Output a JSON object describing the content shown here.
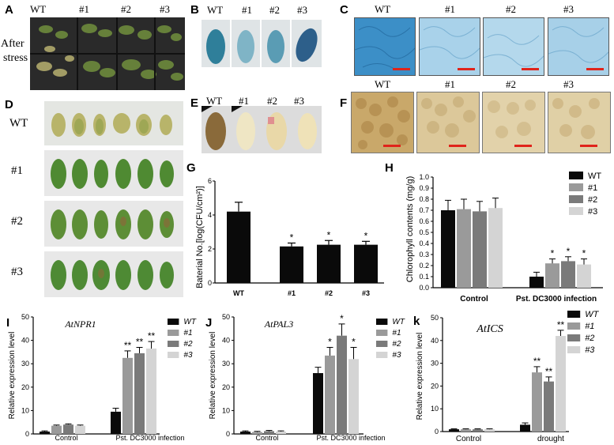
{
  "panels": {
    "A": {
      "letter": "A",
      "side_label_1": "After",
      "side_label_2": "stress",
      "cols": [
        "WT",
        "#1",
        "#2",
        "#3"
      ]
    },
    "B": {
      "letter": "B",
      "cols": [
        "WT",
        "#1",
        "#2",
        "#3"
      ]
    },
    "C": {
      "letter": "C",
      "cols": [
        "WT",
        "#1",
        "#2",
        "#3"
      ]
    },
    "D": {
      "letter": "D",
      "rows": [
        "WT",
        "#1",
        "#2",
        "#3"
      ]
    },
    "E": {
      "letter": "E",
      "cols": [
        "WT",
        "#1",
        "#2",
        "#3"
      ]
    },
    "F": {
      "letter": "F",
      "cols": [
        "WT",
        "#1",
        "#2",
        "#3"
      ]
    },
    "G": {
      "letter": "G"
    },
    "H": {
      "letter": "H"
    },
    "I": {
      "letter": "I"
    },
    "J": {
      "letter": "J"
    },
    "K": {
      "letter": "k"
    }
  },
  "colors": {
    "black": "#0a0a0a",
    "gray1": "#9a9a9a",
    "gray2": "#7a7a7a",
    "gray3": "#d4d4d4",
    "photo_dark": "#2c2c2c",
    "gus_blue": "#2f7f9a",
    "nbt_bg": "#3c8fc7",
    "dab_bg": "#c9a86a",
    "scale_bar": "#e0241b"
  },
  "chart_data": [
    {
      "id": "G",
      "type": "bar",
      "ylabel": "Baterial No.[log(CFU/cm²)]",
      "categories": [
        "WT",
        "#1",
        "#2",
        "#3"
      ],
      "values": [
        4.2,
        2.15,
        2.25,
        2.25
      ],
      "errors": [
        0.55,
        0.2,
        0.25,
        0.2
      ],
      "sig": [
        "",
        "*",
        "*",
        "*"
      ],
      "ylim": [
        0,
        6
      ],
      "yticks": [
        "0",
        "2",
        "4",
        "6"
      ]
    },
    {
      "id": "H",
      "type": "bar",
      "ylabel": "Chlorophyll contents (mg/g)",
      "groups": [
        "Control",
        "Pst. DC3000 infection"
      ],
      "series": [
        {
          "name": "WT",
          "values": [
            0.7,
            0.1
          ],
          "errors": [
            0.09,
            0.04
          ],
          "sig": [
            "",
            ""
          ]
        },
        {
          "name": "#1",
          "values": [
            0.71,
            0.22
          ],
          "errors": [
            0.09,
            0.04
          ],
          "sig": [
            "",
            "*"
          ]
        },
        {
          "name": "#2",
          "values": [
            0.69,
            0.24
          ],
          "errors": [
            0.09,
            0.04
          ],
          "sig": [
            "",
            "*"
          ]
        },
        {
          "name": "#3",
          "values": [
            0.72,
            0.21
          ],
          "errors": [
            0.09,
            0.05
          ],
          "sig": [
            "",
            "*"
          ]
        }
      ],
      "ylim": [
        0,
        1.0
      ],
      "yticks": [
        "0.0",
        "0.1",
        "0.2",
        "0.3",
        "0.4",
        "0.5",
        "0.6",
        "0.7",
        "0.8",
        "0.9",
        "1.0"
      ],
      "legend": "top-right"
    },
    {
      "id": "I",
      "type": "bar",
      "title": "AtNPR1",
      "ylabel": "Relative expression level",
      "groups": [
        "Control",
        "Pst. DC3000 infection"
      ],
      "series": [
        {
          "name": "WT",
          "values": [
            1.0,
            9.5
          ],
          "errors": [
            0.3,
            1.5
          ],
          "sig": [
            "",
            ""
          ]
        },
        {
          "name": "#1",
          "values": [
            3.5,
            32.5
          ],
          "errors": [
            0.3,
            3.0
          ],
          "sig": [
            "",
            "**"
          ]
        },
        {
          "name": "#2",
          "values": [
            4.0,
            34.5
          ],
          "errors": [
            0.3,
            2.5
          ],
          "sig": [
            "",
            "**"
          ]
        },
        {
          "name": "#3",
          "values": [
            3.5,
            36.5
          ],
          "errors": [
            0.3,
            3.0
          ],
          "sig": [
            "",
            "**"
          ]
        }
      ],
      "ylim": [
        0,
        50
      ],
      "yticks": [
        "0",
        "10",
        "20",
        "30",
        "40",
        "50"
      ],
      "legend": "top-right"
    },
    {
      "id": "J",
      "type": "bar",
      "title": "AtPAL3",
      "ylabel": "Relative expression level",
      "groups": [
        "Control",
        "Pst. DC3000 infection"
      ],
      "series": [
        {
          "name": "WT",
          "values": [
            1.0,
            26.0
          ],
          "errors": [
            0.3,
            2.5
          ],
          "sig": [
            "",
            ""
          ]
        },
        {
          "name": "#1",
          "values": [
            0.8,
            33.5
          ],
          "errors": [
            0.3,
            3.5
          ],
          "sig": [
            "",
            "*"
          ]
        },
        {
          "name": "#2",
          "values": [
            1.2,
            42.0
          ],
          "errors": [
            0.3,
            5.0
          ],
          "sig": [
            "",
            "*"
          ]
        },
        {
          "name": "#3",
          "values": [
            1.0,
            32.0
          ],
          "errors": [
            0.3,
            5.0
          ],
          "sig": [
            "",
            "*"
          ]
        }
      ],
      "ylim": [
        0,
        50
      ],
      "yticks": [
        "0",
        "10",
        "20",
        "30",
        "40",
        "50"
      ],
      "legend": "top-right"
    },
    {
      "id": "K",
      "type": "bar",
      "title": "AtICS",
      "ylabel": "Relative expression level",
      "groups": [
        "Control",
        "drought"
      ],
      "series": [
        {
          "name": "WT",
          "values": [
            1.0,
            3.0
          ],
          "errors": [
            0.2,
            0.8
          ],
          "sig": [
            "",
            ""
          ]
        },
        {
          "name": "#1",
          "values": [
            1.0,
            26.0
          ],
          "errors": [
            0.2,
            2.5
          ],
          "sig": [
            "",
            "**"
          ]
        },
        {
          "name": "#2",
          "values": [
            1.0,
            22.0
          ],
          "errors": [
            0.2,
            2.0
          ],
          "sig": [
            "",
            "**"
          ]
        },
        {
          "name": "#3",
          "values": [
            1.0,
            42.0
          ],
          "errors": [
            0.2,
            2.5
          ],
          "sig": [
            "",
            "**"
          ]
        }
      ],
      "ylim": [
        0,
        50
      ],
      "yticks": [
        "0",
        "10",
        "20",
        "30",
        "40",
        "50"
      ],
      "legend": "top-right"
    }
  ]
}
